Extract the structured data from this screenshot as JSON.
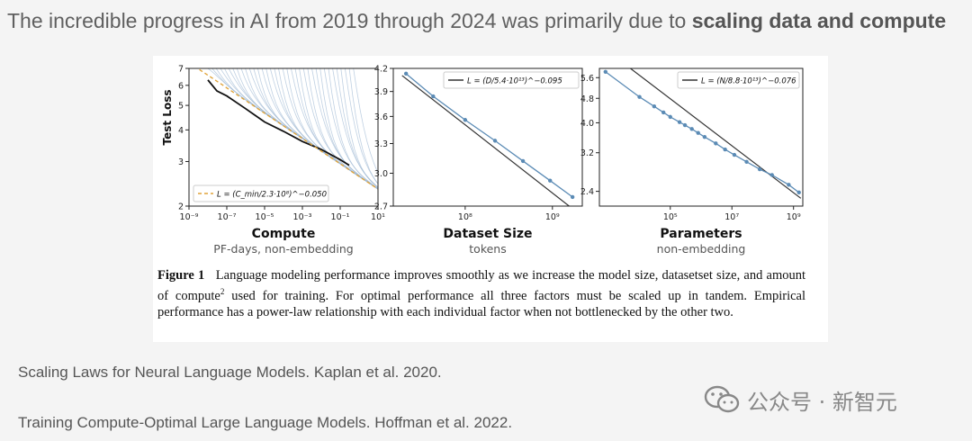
{
  "headline": {
    "prefix": "The incredible progress in AI from 2019 through 2024 was primarily due to ",
    "emphasis": "scaling data and compute"
  },
  "caption": {
    "label": "Figure 1",
    "text_a": "Language modeling performance improves smoothly as we increase the model size, datasetset size, and amount of compute",
    "footnote_mark": "2",
    "text_b": " used for training. For optimal performance all three factors must be scaled up in tandem. Empirical performance has a power-law relationship with each individual factor when not bottlenecked by the other two."
  },
  "references": [
    "Scaling Laws for Neural Language Models. Kaplan et al. 2020.",
    "Training Compute-Optimal Large Language Models. Hoffman et al. 2022."
  ],
  "watermark": {
    "text": "公众号 · 新智元",
    "icon": "wechat-icon"
  },
  "colors": {
    "fit_line": "#333333",
    "data_line": "#5b8bb5",
    "frontier_fit": "#e0a43a",
    "learning_curves": "#9cb7d3"
  },
  "chart_data": [
    {
      "type": "line",
      "xlabel": "Compute",
      "xsublabel": "PF-days, non-embedding",
      "ylabel": "Test Loss",
      "xscale": "log",
      "yscale": "log",
      "xlim": [
        1e-09,
        10
      ],
      "ylim": [
        2,
        7
      ],
      "xticks": [
        "10⁻⁹",
        "10⁻⁷",
        "10⁻⁵",
        "10⁻³",
        "10⁻¹",
        "10¹"
      ],
      "xtick_values": [
        1e-09,
        1e-07,
        1e-05,
        0.001,
        0.1,
        10
      ],
      "yticks": [
        "2",
        "3",
        "4",
        "5",
        "6",
        "7"
      ],
      "ytick_values": [
        2,
        3,
        4,
        5,
        6,
        7
      ],
      "legend": "L = (C_min/2.3·10⁸)^−0.050",
      "legend_position": "bottom-left",
      "fit": {
        "a": 230000000.0,
        "alpha": 0.05
      },
      "frontier": {
        "x": [
          1e-08,
          3e-08,
          1e-07,
          1e-06,
          1e-05,
          0.0001,
          0.001,
          0.01,
          0.1,
          0.3
        ],
        "y": [
          6.3,
          5.7,
          5.45,
          4.85,
          4.3,
          3.95,
          3.6,
          3.35,
          3.05,
          2.9
        ]
      },
      "learning_curves": {
        "count": 36,
        "start_x_range": [
          1e-08,
          0.5
        ],
        "start_loss": 7
      }
    },
    {
      "type": "line",
      "xlabel": "Dataset Size",
      "xsublabel": "tokens",
      "xscale": "log",
      "yscale": "log",
      "xlim": [
        15000000.0,
        2200000000.0
      ],
      "ylim": [
        2.7,
        4.2
      ],
      "xticks": [
        "10⁸",
        "10⁹"
      ],
      "xtick_values": [
        100000000.0,
        1000000000.0
      ],
      "yticks": [
        "2.7",
        "3.0",
        "3.3",
        "3.6",
        "3.9",
        "4.2"
      ],
      "ytick_values": [
        2.7,
        3.0,
        3.3,
        3.6,
        3.9,
        4.2
      ],
      "legend": "L = (D/5.4·10¹³)^−0.095",
      "legend_position": "top-right",
      "fit": {
        "a": 54000000000000.0,
        "alpha": 0.095
      },
      "series": [
        {
          "name": "",
          "x": [
            21000000.0,
            43000000.0,
            100000000.0,
            220000000.0,
            460000000.0,
            940000000.0,
            1700000000.0
          ],
          "y": [
            4.13,
            3.84,
            3.56,
            3.33,
            3.12,
            2.93,
            2.78
          ]
        }
      ]
    },
    {
      "type": "line",
      "xlabel": "Parameters",
      "xsublabel": "non-embedding",
      "xscale": "log",
      "yscale": "log",
      "xlim": [
        500,
        2000000000.0
      ],
      "ylim": [
        2.15,
        6.0
      ],
      "xticks": [
        "10⁵",
        "10⁷",
        "10⁹"
      ],
      "xtick_values": [
        100000.0,
        10000000.0,
        1000000000.0
      ],
      "yticks": [
        "2.4",
        "3.2",
        "4.0",
        "4.8",
        "5.6"
      ],
      "ytick_values": [
        2.4,
        3.2,
        4.0,
        4.8,
        5.6
      ],
      "legend": "L = (N/8.8·10¹³)^−0.076",
      "legend_position": "top-right",
      "fit": {
        "a": 88000000000000.0,
        "alpha": 0.076
      },
      "series": [
        {
          "name": "",
          "x": [
            790,
            10000.0,
            30000.0,
            60000.0,
            100000.0,
            200000.0,
            300000.0,
            500000.0,
            800000.0,
            1300000.0,
            3000000.0,
            6000000.0,
            12000000.0,
            30000000.0,
            80000000.0,
            200000000.0,
            700000000.0,
            1500000000.0
          ],
          "y": [
            5.85,
            4.85,
            4.52,
            4.32,
            4.18,
            4.02,
            3.93,
            3.82,
            3.71,
            3.6,
            3.43,
            3.28,
            3.15,
            2.99,
            2.83,
            2.71,
            2.52,
            2.38
          ]
        }
      ]
    }
  ]
}
